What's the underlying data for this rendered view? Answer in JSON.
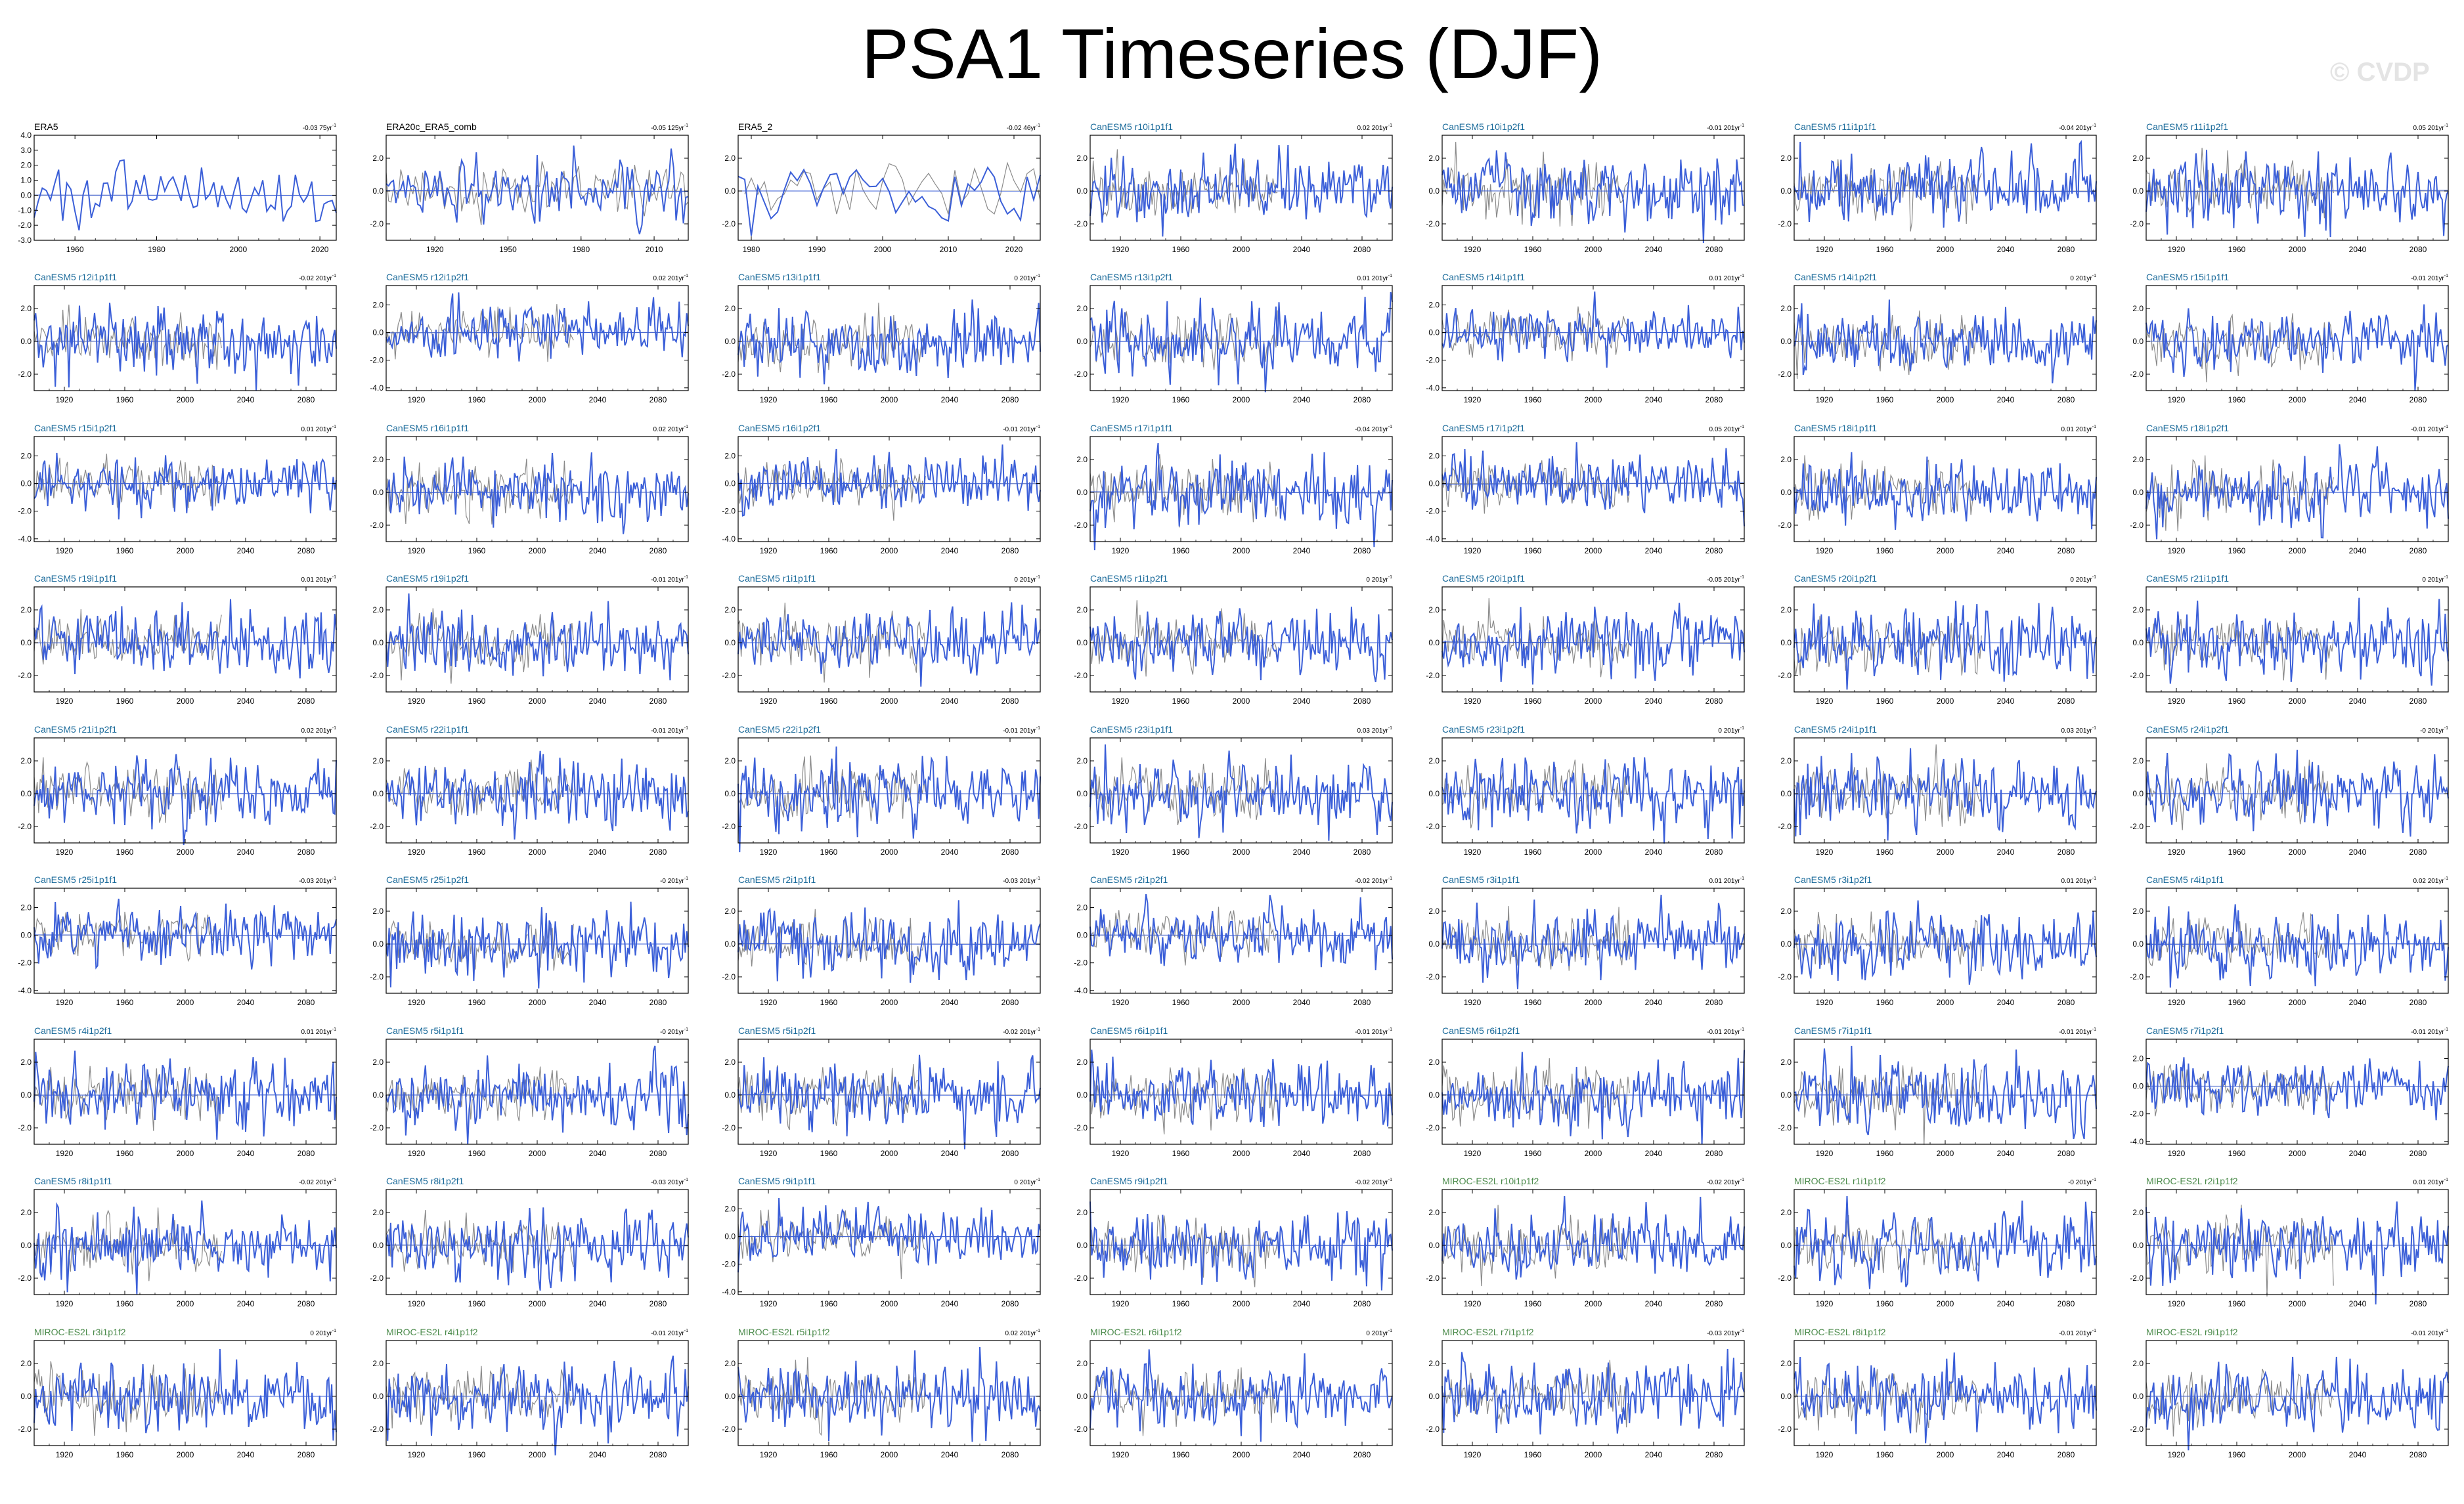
{
  "title": "PSA1 Timeseries (DJF)",
  "watermark": "© CVDP",
  "colors": {
    "series": "#3b5fd8",
    "reference": "#8a8a8a",
    "title_obs": "#000000",
    "title_canesm": "#1a6a9a",
    "title_miroc": "#4a8a4a"
  },
  "chart_data": {
    "type": "line",
    "grid": false,
    "layout": "7 columns x 9 rows small multiples",
    "trend_units": "yr⁻¹",
    "panels": [
      {
        "name": "ERA5",
        "trend": "-0.03 75yr",
        "xticks": [
          1960,
          1980,
          2000,
          2020
        ],
        "xlim": [
          1950,
          2024
        ],
        "yticks": [
          4.0,
          3.0,
          2.0,
          1.0,
          0.0,
          -1.0,
          -2.0,
          -3.0
        ],
        "ylim": [
          -3,
          4
        ],
        "group": "obs"
      },
      {
        "name": "ERA20c_ERA5_comb",
        "trend": "-0.05 125yr",
        "xticks": [
          1920,
          1950,
          1980,
          2010
        ],
        "xlim": [
          1900,
          2024
        ],
        "yticks": [
          2.0,
          0.0,
          -2.0
        ],
        "ylim": [
          -3,
          3.4
        ],
        "group": "obs"
      },
      {
        "name": "ERA5_2",
        "trend": "-0.02 46yr",
        "xticks": [
          1980,
          1990,
          2000,
          2010,
          2020
        ],
        "xlim": [
          1978,
          2024
        ],
        "yticks": [
          2.0,
          0.0,
          -2.0
        ],
        "ylim": [
          -3,
          3.4
        ],
        "group": "obs"
      },
      {
        "name": "CanESM5 r10i1p1f1",
        "trend": "0.02 201yr",
        "group": "canesm"
      },
      {
        "name": "CanESM5 r10i1p2f1",
        "trend": "-0.01 201yr",
        "group": "canesm"
      },
      {
        "name": "CanESM5 r11i1p1f1",
        "trend": "-0.04 201yr",
        "group": "canesm"
      },
      {
        "name": "CanESM5 r11i1p2f1",
        "trend": "0.05 201yr",
        "group": "canesm"
      },
      {
        "name": "CanESM5 r12i1p1f1",
        "trend": "-0.02 201yr",
        "group": "canesm"
      },
      {
        "name": "CanESM5 r12i1p2f1",
        "trend": "0.02 201yr",
        "group": "canesm",
        "yticks": [
          2.0,
          0.0,
          -2.0,
          -4.0
        ],
        "ylim": [
          -4.2,
          3.4
        ]
      },
      {
        "name": "CanESM5 r13i1p1f1",
        "trend": "0 201yr",
        "group": "canesm"
      },
      {
        "name": "CanESM5 r13i1p2f1",
        "trend": "0.01 201yr",
        "group": "canesm"
      },
      {
        "name": "CanESM5 r14i1p1f1",
        "trend": "0.01 201yr",
        "group": "canesm",
        "yticks": [
          2.0,
          0.0,
          -2.0,
          -4.0
        ],
        "ylim": [
          -4.2,
          3.4
        ]
      },
      {
        "name": "CanESM5 r14i1p2f1",
        "trend": "0 201yr",
        "group": "canesm"
      },
      {
        "name": "CanESM5 r15i1p1f1",
        "trend": "-0.01 201yr",
        "group": "canesm"
      },
      {
        "name": "CanESM5 r15i1p2f1",
        "trend": "0.01 201yr",
        "group": "canesm",
        "yticks": [
          2.0,
          0.0,
          -2.0,
          -4.0
        ],
        "ylim": [
          -4.2,
          3.4
        ]
      },
      {
        "name": "CanESM5 r16i1p1f1",
        "trend": "0.02 201yr",
        "group": "canesm"
      },
      {
        "name": "CanESM5 r16i1p2f1",
        "trend": "-0.01 201yr",
        "group": "canesm",
        "yticks": [
          2.0,
          0.0,
          -2.0,
          -4.0
        ],
        "ylim": [
          -4.2,
          3.4
        ]
      },
      {
        "name": "CanESM5 r17i1p1f1",
        "trend": "-0.04 201yr",
        "group": "canesm"
      },
      {
        "name": "CanESM5 r17i1p2f1",
        "trend": "0.05 201yr",
        "group": "canesm",
        "yticks": [
          2.0,
          0.0,
          -2.0,
          -4.0
        ],
        "ylim": [
          -4.2,
          3.4
        ]
      },
      {
        "name": "CanESM5 r18i1p1f1",
        "trend": "0.01 201yr",
        "group": "canesm"
      },
      {
        "name": "CanESM5 r18i1p2f1",
        "trend": "-0.01 201yr",
        "group": "canesm"
      },
      {
        "name": "CanESM5 r19i1p1f1",
        "trend": "0.01 201yr",
        "group": "canesm"
      },
      {
        "name": "CanESM5 r19i1p2f1",
        "trend": "-0.01 201yr",
        "group": "canesm"
      },
      {
        "name": "CanESM5 r1i1p1f1",
        "trend": "0 201yr",
        "group": "canesm"
      },
      {
        "name": "CanESM5 r1i1p2f1",
        "trend": "0 201yr",
        "group": "canesm"
      },
      {
        "name": "CanESM5 r20i1p1f1",
        "trend": "-0.05 201yr",
        "group": "canesm"
      },
      {
        "name": "CanESM5 r20i1p2f1",
        "trend": "0 201yr",
        "group": "canesm"
      },
      {
        "name": "CanESM5 r21i1p1f1",
        "trend": "0 201yr",
        "group": "canesm"
      },
      {
        "name": "CanESM5 r21i1p2f1",
        "trend": "0.02 201yr",
        "group": "canesm"
      },
      {
        "name": "CanESM5 r22i1p1f1",
        "trend": "-0.01 201yr",
        "group": "canesm"
      },
      {
        "name": "CanESM5 r22i1p2f1",
        "trend": "-0.01 201yr",
        "group": "canesm"
      },
      {
        "name": "CanESM5 r23i1p1f1",
        "trend": "0.03 201yr",
        "group": "canesm"
      },
      {
        "name": "CanESM5 r23i1p2f1",
        "trend": "0 201yr",
        "group": "canesm"
      },
      {
        "name": "CanESM5 r24i1p1f1",
        "trend": "0.03 201yr",
        "group": "canesm"
      },
      {
        "name": "CanESM5 r24i1p2f1",
        "trend": "-0 201yr",
        "group": "canesm"
      },
      {
        "name": "CanESM5 r25i1p1f1",
        "trend": "-0.03 201yr",
        "group": "canesm",
        "yticks": [
          2.0,
          0.0,
          -2.0,
          -4.0
        ],
        "ylim": [
          -4.2,
          3.4
        ]
      },
      {
        "name": "CanESM5 r25i1p2f1",
        "trend": "-0 201yr",
        "group": "canesm"
      },
      {
        "name": "CanESM5 r2i1p1f1",
        "trend": "-0.03 201yr",
        "group": "canesm"
      },
      {
        "name": "CanESM5 r2i1p2f1",
        "trend": "-0.02 201yr",
        "group": "canesm",
        "yticks": [
          2.0,
          0.0,
          -2.0,
          -4.0
        ],
        "ylim": [
          -4.2,
          3.4
        ]
      },
      {
        "name": "CanESM5 r3i1p1f1",
        "trend": "0.01 201yr",
        "group": "canesm"
      },
      {
        "name": "CanESM5 r3i1p2f1",
        "trend": "0.01 201yr",
        "group": "canesm"
      },
      {
        "name": "CanESM5 r4i1p1f1",
        "trend": "0.02 201yr",
        "group": "canesm"
      },
      {
        "name": "CanESM5 r4i1p2f1",
        "trend": "0.01 201yr",
        "group": "canesm"
      },
      {
        "name": "CanESM5 r5i1p1f1",
        "trend": "-0 201yr",
        "group": "canesm"
      },
      {
        "name": "CanESM5 r5i1p2f1",
        "trend": "-0.02 201yr",
        "group": "canesm"
      },
      {
        "name": "CanESM5 r6i1p1f1",
        "trend": "-0.01 201yr",
        "group": "canesm"
      },
      {
        "name": "CanESM5 r6i1p2f1",
        "trend": "-0.01 201yr",
        "group": "canesm"
      },
      {
        "name": "CanESM5 r7i1p1f1",
        "trend": "-0.01 201yr",
        "group": "canesm"
      },
      {
        "name": "CanESM5 r7i1p2f1",
        "trend": "-0.01 201yr",
        "group": "canesm",
        "yticks": [
          2.0,
          0.0,
          -2.0,
          -4.0
        ],
        "ylim": [
          -4.2,
          3.4
        ]
      },
      {
        "name": "CanESM5 r8i1p1f1",
        "trend": "-0.02 201yr",
        "group": "canesm"
      },
      {
        "name": "CanESM5 r8i1p2f1",
        "trend": "-0.03 201yr",
        "group": "canesm"
      },
      {
        "name": "CanESM5 r9i1p1f1",
        "trend": "0 201yr",
        "group": "canesm",
        "yticks": [
          2.0,
          0.0,
          -2.0,
          -4.0
        ],
        "ylim": [
          -4.2,
          3.4
        ]
      },
      {
        "name": "CanESM5 r9i1p2f1",
        "trend": "-0.02 201yr",
        "group": "canesm"
      },
      {
        "name": "MIROC-ES2L r10i1p1f2",
        "trend": "-0.02 201yr",
        "group": "miroc"
      },
      {
        "name": "MIROC-ES2L r1i1p1f2",
        "trend": "-0 201yr",
        "group": "miroc"
      },
      {
        "name": "MIROC-ES2L r2i1p1f2",
        "trend": "0.01 201yr",
        "group": "miroc"
      },
      {
        "name": "MIROC-ES2L r3i1p1f2",
        "trend": "0 201yr",
        "group": "miroc"
      },
      {
        "name": "MIROC-ES2L r4i1p1f2",
        "trend": "-0.01 201yr",
        "group": "miroc"
      },
      {
        "name": "MIROC-ES2L r5i1p1f2",
        "trend": "0.02 201yr",
        "group": "miroc"
      },
      {
        "name": "MIROC-ES2L r6i1p1f2",
        "trend": "0 201yr",
        "group": "miroc"
      },
      {
        "name": "MIROC-ES2L r7i1p1f2",
        "trend": "-0.03 201yr",
        "group": "miroc"
      },
      {
        "name": "MIROC-ES2L r8i1p1f2",
        "trend": "-0.01 201yr",
        "group": "miroc"
      },
      {
        "name": "MIROC-ES2L r9i1p1f2",
        "trend": "-0.01 201yr",
        "group": "miroc"
      }
    ],
    "model_defaults": {
      "xticks": [
        1920,
        1960,
        2000,
        2040,
        2080
      ],
      "xlim": [
        1900,
        2100
      ],
      "yticks": [
        2.0,
        0.0,
        -2.0
      ],
      "ylim": [
        -3,
        3.4
      ]
    }
  }
}
